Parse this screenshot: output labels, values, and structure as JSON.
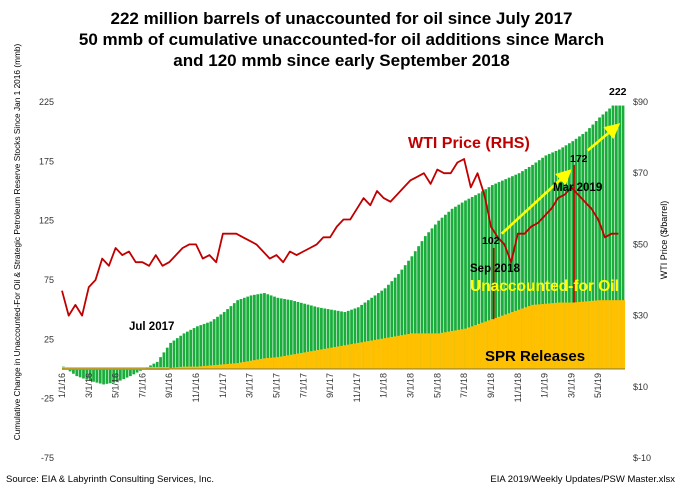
{
  "title_lines": [
    "222 million barrels of unaccounted for oil since July 2017",
    "50 mmb of cumulative unaccounted-for oil additions since March",
    "and 120 mmb since early September 2018"
  ],
  "source_left": "Source:  EIA & Labyrinth Consulting Services, Inc.",
  "source_right": "EIA 2019/Weekly Updates/PSW Master.xlsx",
  "colors": {
    "unaccounted": "#1aad3c",
    "spr": "#ffc000",
    "wti": "#c00000",
    "arrow": "#ffff00",
    "marker": "#c00000",
    "label_green_text": "#ffff00"
  },
  "chart_data": {
    "type": "area",
    "ylabel_left": "Cumulative Change in Unaccounted-For Oil & Strategic Petroleum Reserve Stocks Since Jan 1 2016 (mmb)",
    "ylabel_right": "WTI Price ($/barrel)",
    "ylim_left": [
      -75,
      225
    ],
    "ylim_right": [
      -10,
      90
    ],
    "yticks_left": [
      "-75",
      "-25",
      "25",
      "75",
      "125",
      "175",
      "225"
    ],
    "yticks_right": [
      "$-10",
      "$10",
      "$30",
      "$50",
      "$70",
      "$90"
    ],
    "xticks": [
      "1/1/16",
      "3/1/16",
      "5/1/16",
      "7/1/16",
      "9/1/16",
      "11/1/16",
      "1/1/17",
      "3/1/17",
      "5/1/17",
      "7/1/17",
      "9/1/17",
      "11/1/17",
      "1/1/18",
      "3/1/18",
      "5/1/18",
      "7/1/18",
      "9/1/18",
      "11/1/18",
      "1/1/19",
      "3/1/19",
      "5/1/19"
    ],
    "months_axis_note": "x in months since Jan 2016",
    "series": [
      {
        "name": "Unaccounted-for Oil",
        "kind": "bar-area",
        "x": [
          0,
          1,
          2,
          3,
          4,
          5,
          6,
          7,
          8,
          9,
          10,
          11,
          12,
          13,
          14,
          15,
          16,
          17,
          18,
          19,
          20,
          21,
          22,
          23,
          24,
          25,
          26,
          27,
          28,
          29,
          30,
          31,
          32,
          33,
          34,
          35,
          36,
          37,
          38,
          39,
          40,
          41
        ],
        "values": [
          2,
          -6,
          -10,
          -13,
          -11,
          -6,
          0,
          6,
          22,
          30,
          36,
          40,
          48,
          58,
          62,
          64,
          60,
          58,
          55,
          52,
          50,
          48,
          52,
          60,
          68,
          80,
          95,
          112,
          125,
          135,
          142,
          148,
          155,
          160,
          165,
          172,
          180,
          185,
          192,
          200,
          212,
          222
        ]
      },
      {
        "name": "SPR Releases",
        "kind": "bar-area",
        "x": [
          0,
          1,
          2,
          3,
          4,
          5,
          6,
          7,
          8,
          9,
          10,
          11,
          12,
          13,
          14,
          15,
          16,
          17,
          18,
          19,
          20,
          21,
          22,
          23,
          24,
          25,
          26,
          27,
          28,
          29,
          30,
          31,
          32,
          33,
          34,
          35,
          36,
          37,
          38,
          39,
          40,
          41
        ],
        "values": [
          0,
          0,
          0,
          0,
          0,
          0,
          0,
          0,
          1,
          2,
          2,
          3,
          4,
          5,
          7,
          9,
          10,
          12,
          14,
          16,
          18,
          20,
          22,
          24,
          26,
          28,
          30,
          30,
          30,
          32,
          34,
          38,
          42,
          46,
          50,
          54,
          55,
          56,
          56,
          57,
          58,
          58
        ]
      },
      {
        "name": "WTI Price (RHS)",
        "kind": "line",
        "axis": "right",
        "x": [
          0,
          0.5,
          1,
          1.5,
          2,
          2.5,
          3,
          3.5,
          4,
          4.5,
          5,
          5.5,
          6,
          6.5,
          7,
          7.5,
          8,
          8.5,
          9,
          9.5,
          10,
          10.5,
          11,
          11.5,
          12,
          12.5,
          13,
          13.5,
          14,
          14.5,
          15,
          15.5,
          16,
          16.5,
          17,
          17.5,
          18,
          18.5,
          19,
          19.5,
          20,
          20.5,
          21,
          21.5,
          22,
          22.5,
          23,
          23.5,
          24,
          24.5,
          25,
          25.5,
          26,
          26.5,
          27,
          27.5,
          28,
          28.5,
          29,
          29.5,
          30,
          30.5,
          31,
          31.5,
          32,
          32.5,
          33,
          33.5,
          34,
          34.5,
          35,
          35.5,
          36,
          36.5,
          37,
          37.5,
          38,
          38.5,
          39,
          39.5,
          40,
          40.5,
          41,
          41.5
        ],
        "values": [
          37,
          30,
          33,
          30,
          38,
          40,
          46,
          44,
          49,
          47,
          48,
          45,
          45,
          44,
          47,
          44,
          45,
          47,
          49,
          50,
          50,
          46,
          47,
          45,
          53,
          53,
          53,
          52,
          51,
          50,
          48,
          46,
          47,
          45,
          48,
          47,
          48,
          49,
          50,
          52,
          52,
          55,
          57,
          57,
          60,
          63,
          61,
          65,
          63,
          62,
          64,
          66,
          68,
          69,
          70,
          67,
          71,
          70,
          70,
          73,
          74,
          66,
          70,
          64,
          55,
          52,
          50,
          45,
          53,
          53,
          55,
          56,
          58,
          60,
          63,
          64,
          66,
          64,
          62,
          60,
          57,
          52,
          53,
          53
        ]
      }
    ],
    "annotations": [
      "WTI Price (RHS)",
      "Jul 2017",
      "102",
      "Sep 2018",
      "172",
      "Mar 2019",
      "222",
      "Unaccounted-for Oil",
      "SPR Releases"
    ],
    "markers": [
      {
        "label": "102",
        "date_label": "Sep 2018",
        "x": 32.2,
        "value": 102
      },
      {
        "label": "172",
        "date_label": "Mar 2019",
        "x": 38.2,
        "value": 172
      }
    ],
    "arrows": [
      {
        "from_x": 32.8,
        "from_value": 114,
        "to_x": 37.6,
        "to_value": 164
      },
      {
        "from_x": 39.2,
        "from_value": 184,
        "to_x": 41.2,
        "to_value": 203
      }
    ],
    "legend": "none",
    "grid": false
  }
}
